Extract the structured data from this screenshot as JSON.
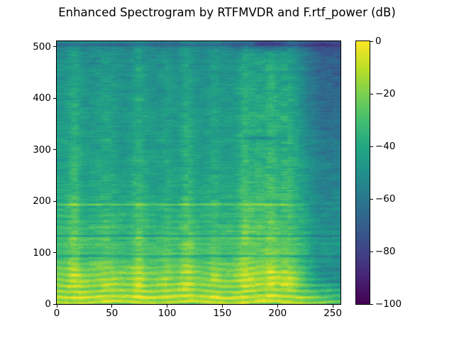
{
  "figure": {
    "background": "#ffffff",
    "text_color": "#000000",
    "spine_color": "#000000"
  },
  "chart_data": {
    "type": "heatmap",
    "subtype": "spectrogram",
    "title": "Enhanced Spectrogram by RTFMVDR and F.rtf_power (dB)",
    "xlabel": "",
    "ylabel": "",
    "x_range": [
      0,
      257
    ],
    "y_range": [
      0,
      511
    ],
    "value_range_db": [
      -100,
      0
    ],
    "grid": "off",
    "x_ticks": {
      "values": [
        0,
        50,
        100,
        150,
        200,
        250
      ],
      "labels": [
        "0",
        "50",
        "100",
        "150",
        "200",
        "250"
      ]
    },
    "y_ticks": {
      "values": [
        0,
        100,
        200,
        300,
        400,
        500
      ],
      "labels": [
        "0",
        "100",
        "200",
        "300",
        "400",
        "500"
      ]
    },
    "colorbar": {
      "position": "right",
      "range": [
        -100,
        0
      ],
      "tick_values": [
        0,
        -20,
        -40,
        -60,
        -80,
        -100
      ],
      "tick_labels": [
        "0",
        "−20",
        "−40",
        "−60",
        "−80",
        "−100"
      ],
      "unit": "dB"
    },
    "colormap": {
      "name": "viridis",
      "stops": [
        [
          0.0,
          "#440154"
        ],
        [
          0.1,
          "#482475"
        ],
        [
          0.2,
          "#414487"
        ],
        [
          0.3,
          "#355f8d"
        ],
        [
          0.4,
          "#2a788e"
        ],
        [
          0.5,
          "#21918c"
        ],
        [
          0.6,
          "#22a884"
        ],
        [
          0.7,
          "#44bf70"
        ],
        [
          0.8,
          "#7ad151"
        ],
        [
          0.9,
          "#bddf26"
        ],
        [
          1.0,
          "#fde725"
        ]
      ]
    },
    "content_description": "Speech spectrogram: bright yellow harmonic striations below bin ~110; thin dark spectral notches at bins ~93, ~132 and ~504 spanning all frames; thin bright harmonic line at bin ~193 fading after frame ~210; vertical speech-onset energy bands; quieter teal region right of frame ~224; dark purple patch in the top-right corner.",
    "procedural": {
      "seed": 7,
      "grid_t": [
        0,
        21,
        43,
        64,
        86,
        107,
        129,
        150,
        171,
        193,
        214,
        236,
        257
      ],
      "grid_f": [
        0,
        34,
        68,
        102,
        136,
        170,
        204,
        238,
        272,
        306,
        340,
        374,
        408,
        442,
        476,
        511
      ],
      "grid_db": [
        [
          -20,
          -18,
          -19,
          -18,
          -18,
          -19,
          -18,
          -19,
          -18,
          -18,
          -20,
          -24,
          -28
        ],
        [
          -17,
          -19,
          -18,
          -20,
          -18,
          -18,
          -19,
          -18,
          -18,
          -17,
          -22,
          -34,
          -40
        ],
        [
          -22,
          -24,
          -22,
          -25,
          -23,
          -24,
          -24,
          -23,
          -22,
          -22,
          -28,
          -40,
          -45
        ],
        [
          -34,
          -36,
          -35,
          -37,
          -35,
          -36,
          -36,
          -35,
          -34,
          -33,
          -38,
          -39,
          -40
        ],
        [
          -32,
          -34,
          -33,
          -35,
          -34,
          -35,
          -34,
          -34,
          -32,
          -31,
          -38,
          -39,
          -40
        ],
        [
          -36,
          -38,
          -37,
          -39,
          -38,
          -39,
          -38,
          -37,
          -35,
          -34,
          -41,
          -42,
          -43
        ],
        [
          -39,
          -41,
          -40,
          -42,
          -41,
          -42,
          -41,
          -40,
          -38,
          -37,
          -43,
          -44,
          -45
        ],
        [
          -42,
          -44,
          -43,
          -45,
          -44,
          -45,
          -44,
          -43,
          -40,
          -39,
          -45,
          -46,
          -47
        ],
        [
          -44,
          -45,
          -44,
          -46,
          -45,
          -46,
          -45,
          -44,
          -42,
          -41,
          -46,
          -47,
          -48
        ],
        [
          -45,
          -46,
          -45,
          -47,
          -46,
          -47,
          -46,
          -45,
          -43,
          -42,
          -47,
          -48,
          -49
        ],
        [
          -46,
          -47,
          -46,
          -48,
          -47,
          -48,
          -47,
          -46,
          -44,
          -43,
          -48,
          -49,
          -50
        ],
        [
          -47,
          -48,
          -47,
          -49,
          -48,
          -49,
          -48,
          -47,
          -45,
          -44,
          -49,
          -50,
          -51
        ],
        [
          -48,
          -49,
          -48,
          -50,
          -49,
          -50,
          -49,
          -48,
          -46,
          -45,
          -50,
          -51,
          -52
        ],
        [
          -49,
          -50,
          -49,
          -51,
          -50,
          -51,
          -50,
          -49,
          -47,
          -46,
          -51,
          -52,
          -53
        ],
        [
          -51,
          -52,
          -51,
          -53,
          -52,
          -53,
          -52,
          -51,
          -49,
          -48,
          -53,
          -54,
          -55
        ],
        [
          -55,
          -56,
          -55,
          -57,
          -56,
          -57,
          -56,
          -55,
          -58,
          -60,
          -59,
          -60,
          -61
        ]
      ],
      "events": [
        {
          "t": 16,
          "w": 9,
          "g": 10
        },
        {
          "t": 45,
          "w": 12,
          "g": 5
        },
        {
          "t": 74,
          "w": 9,
          "g": 10
        },
        {
          "t": 100,
          "w": 7,
          "g": 5
        },
        {
          "t": 118,
          "w": 9,
          "g": 10
        },
        {
          "t": 143,
          "w": 8,
          "g": 5
        },
        {
          "t": 170,
          "w": 8,
          "g": 9
        },
        {
          "t": 182,
          "w": 12,
          "g": 6
        },
        {
          "t": 195,
          "w": 8,
          "g": 9
        },
        {
          "t": 207,
          "w": 10,
          "g": 8
        },
        {
          "t": 215,
          "w": 12,
          "g": 6
        }
      ],
      "dark_lines": [
        {
          "f": 93,
          "depth": 14,
          "sigma": 1.3
        },
        {
          "f": 132,
          "depth": 12,
          "sigma": 1.3
        },
        {
          "f": 504,
          "depth": 12,
          "sigma": 2.2
        }
      ],
      "bright_lines": [
        {
          "f": 193,
          "gain": 14,
          "sigma": 1.3,
          "t_fade_start": 210,
          "t_fade_end": 235
        },
        {
          "f": 11,
          "gain": 6,
          "sigma": 5,
          "t_fade_start": 244,
          "t_fade_end": 254
        }
      ],
      "bright_band": {
        "f_min": 96,
        "f_max": 130,
        "gain": 3.5
      },
      "stripes": {
        "amp": 9,
        "period": 11.3,
        "f_max": 115,
        "mid_amp": 2.2,
        "mid_f_max": 205
      },
      "right_quiet": {
        "t_start": 224,
        "rate": 0.7,
        "max": 9,
        "f_min": 38
      },
      "top_right_blob": {
        "t": 192,
        "sigma_t": 20,
        "sigma_f": 12,
        "depth": 17
      },
      "top_right_shade": {
        "t_start": 205,
        "f_start": 280,
        "depth": 5
      },
      "dark_dash": {
        "t": 185,
        "f": 323,
        "sigma_t": 10,
        "sigma_f": 3.5,
        "depth": 13
      },
      "noise": {
        "row": 2,
        "segment": 4.5,
        "pixel": 3.5,
        "blotch": 2.5
      }
    }
  }
}
